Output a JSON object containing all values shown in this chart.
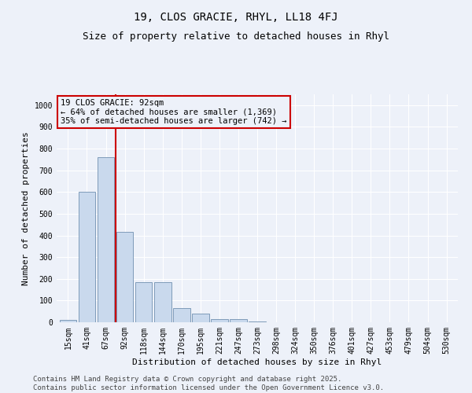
{
  "title1": "19, CLOS GRACIE, RHYL, LL18 4FJ",
  "title2": "Size of property relative to detached houses in Rhyl",
  "xlabel": "Distribution of detached houses by size in Rhyl",
  "ylabel": "Number of detached properties",
  "categories": [
    "15sqm",
    "41sqm",
    "67sqm",
    "92sqm",
    "118sqm",
    "144sqm",
    "170sqm",
    "195sqm",
    "221sqm",
    "247sqm",
    "273sqm",
    "298sqm",
    "324sqm",
    "350sqm",
    "376sqm",
    "401sqm",
    "427sqm",
    "453sqm",
    "479sqm",
    "504sqm",
    "530sqm"
  ],
  "values": [
    10,
    600,
    760,
    415,
    185,
    185,
    65,
    40,
    15,
    15,
    5,
    0,
    0,
    0,
    0,
    0,
    0,
    0,
    0,
    0,
    0
  ],
  "bar_color": "#c9d9ed",
  "bar_edge_color": "#7090b0",
  "vline_x": 2.5,
  "vline_color": "#cc0000",
  "annotation_box_text": "19 CLOS GRACIE: 92sqm\n← 64% of detached houses are smaller (1,369)\n35% of semi-detached houses are larger (742) →",
  "annotation_box_color": "#cc0000",
  "ylim": [
    0,
    1050
  ],
  "yticks": [
    0,
    100,
    200,
    300,
    400,
    500,
    600,
    700,
    800,
    900,
    1000
  ],
  "background_color": "#edf1f9",
  "grid_color": "#ffffff",
  "footer_line1": "Contains HM Land Registry data © Crown copyright and database right 2025.",
  "footer_line2": "Contains public sector information licensed under the Open Government Licence v3.0.",
  "title_fontsize": 10,
  "subtitle_fontsize": 9,
  "annotation_fontsize": 7.5,
  "footer_fontsize": 6.5,
  "axis_label_fontsize": 8,
  "tick_fontsize": 7
}
